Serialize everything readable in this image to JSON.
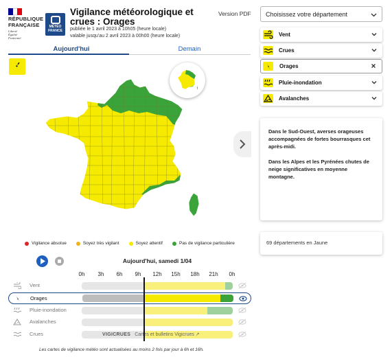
{
  "header": {
    "republic": [
      "RÉPUBLIQUE",
      "FRANÇAISE"
    ],
    "motto": [
      "Liberté",
      "Égalité",
      "Fraternité"
    ],
    "meteo_logo": [
      "MÉTÉO",
      "FRANCE"
    ],
    "title": "Vigilance météorologique et crues : Orages",
    "published": "publiée le 1 avril 2023 à 10h05 (heure locale)",
    "valid_until": "valable jusqu'au 2 avril 2023 à 00h00 (heure locale)",
    "version_pdf": "Version PDF"
  },
  "tabs": {
    "today": "Aujourd'hui",
    "tomorrow": "Demain"
  },
  "colors": {
    "yellow": "#f5ea00",
    "green": "#3aa33a",
    "orange": "#f2b21c",
    "red": "#d9262c",
    "light_yellow": "#f8f07a",
    "light_green": "#9ed19e",
    "blue": "#1e4a8a"
  },
  "legend": [
    {
      "label": "Vigilance absolue",
      "color": "#d9262c"
    },
    {
      "label": "Soyez très vigilant",
      "color": "#f2b21c"
    },
    {
      "label": "Soyez attentif",
      "color": "#f5ea00"
    },
    {
      "label": "Pas de vigilance particulière",
      "color": "#3aa33a"
    }
  ],
  "timeline": {
    "day_label": "Aujourd'hui, samedi 1/04",
    "hours": [
      "0h",
      "3h",
      "6h",
      "9h",
      "12h",
      "15h",
      "18h",
      "21h",
      "0h"
    ],
    "rows": [
      {
        "key": "vent",
        "label": "Vent",
        "icon": "wind-icon"
      },
      {
        "key": "orages",
        "label": "Orages",
        "icon": "thunderstorm-icon"
      },
      {
        "key": "pluie",
        "label": "Pluie-inondation",
        "icon": "rain-flood-icon"
      },
      {
        "key": "avalanches",
        "label": "Avalanches",
        "icon": "avalanche-icon"
      },
      {
        "key": "crues",
        "label": "Crues",
        "icon": "flood-icon"
      }
    ],
    "crues_brand": "VIGICRUES",
    "crues_link": "Cartes et bulletins Vigicrues ↗"
  },
  "footnote": "Les cartes de vigilance météo sont actualisées au moins 2 fois par jour à 6h et 16h.",
  "department_select": {
    "placeholder": "Choisissez votre département"
  },
  "phenomena": [
    {
      "label": "Vent",
      "icon": "wind-icon",
      "control": "chevron"
    },
    {
      "label": "Crues",
      "icon": "flood-icon",
      "control": "chevron"
    },
    {
      "label": "Orages",
      "icon": "thunderstorm-icon",
      "control": "close"
    },
    {
      "label": "Pluie-inondation",
      "icon": "rain-flood-icon",
      "control": "chevron"
    },
    {
      "label": "Avalanches",
      "icon": "avalanche-icon",
      "control": "chevron"
    }
  ],
  "info": [
    "Dans le Sud-Ouest, averses orageuses accompagnées de fortes bourrasques cet après-midi.",
    "Dans les Alpes et les Pyrénées chutes de neige significatives en moyenne montagne."
  ],
  "count_text": "69 départements en Jaune"
}
